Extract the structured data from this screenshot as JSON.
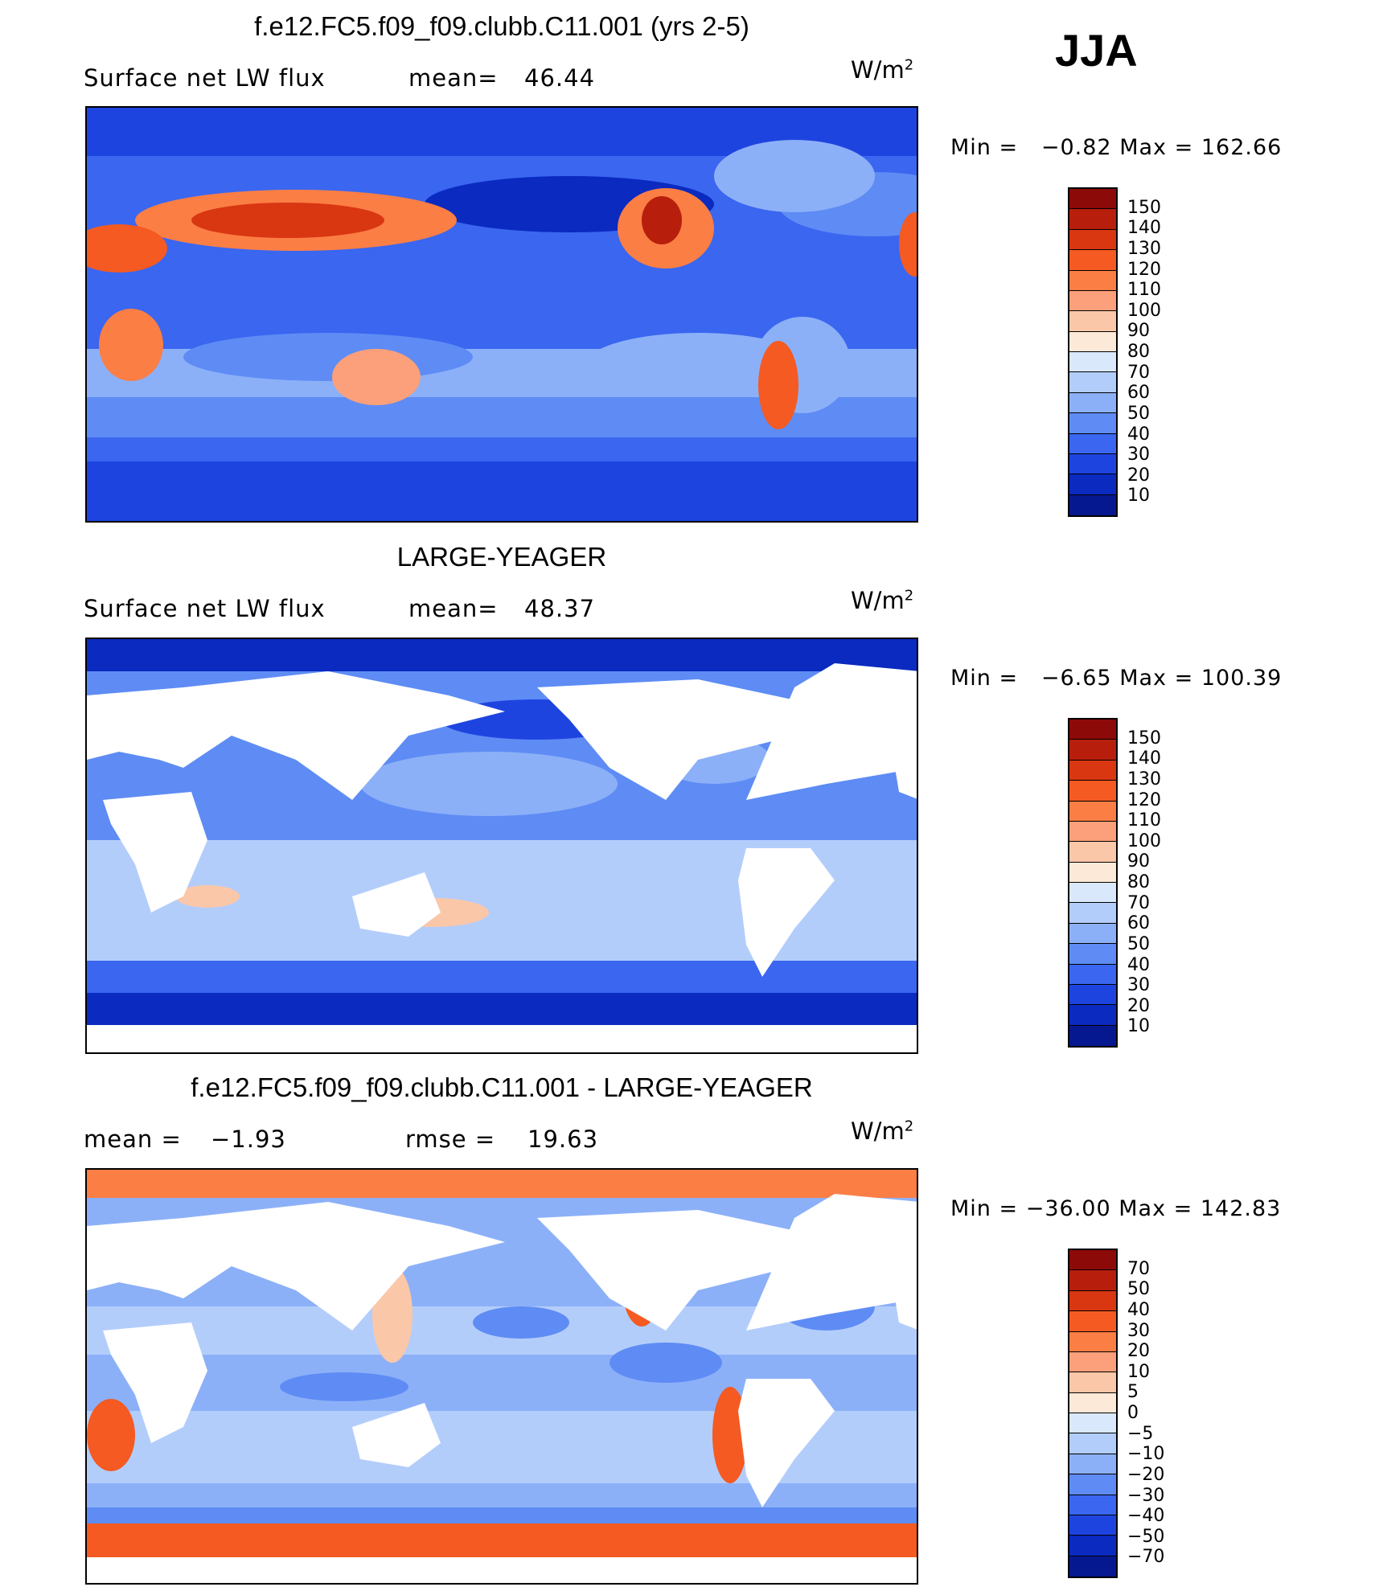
{
  "season": "JJA",
  "units": "W/m",
  "units_power": "2",
  "panels": [
    {
      "title": "f.e12.FC5.f09_f09.clubb.C11.001 (yrs 2-5)",
      "left_label": "Surface net LW flux",
      "stat_label": "mean=",
      "stat_value": "46.44",
      "stat2_label": "",
      "stat2_value": "",
      "min_label": "Min",
      "min_value": "−0.82",
      "max_label": "Max",
      "max_value": "162.66",
      "colorbar_labels": [
        "150",
        "140",
        "130",
        "120",
        "110",
        "100",
        "90",
        "80",
        "70",
        "60",
        "50",
        "40",
        "30",
        "20",
        "10"
      ],
      "colorbar_colors": [
        "#8c0a08",
        "#b81e0c",
        "#d93612",
        "#f45a22",
        "#fb7e45",
        "#fba07a",
        "#fbc7a9",
        "#fde9d8",
        "#d9e9fb",
        "#b3cdfb",
        "#8cb0f8",
        "#5e8cf4",
        "#3a66f0",
        "#1e44e0",
        "#0a2ac0",
        "#06188f"
      ],
      "map_style": "model"
    },
    {
      "title": "LARGE-YEAGER",
      "left_label": "Surface net LW flux",
      "stat_label": "mean=",
      "stat_value": "48.37",
      "stat2_label": "",
      "stat2_value": "",
      "min_label": "Min",
      "min_value": "−6.65",
      "max_label": "Max",
      "max_value": "100.39",
      "colorbar_labels": [
        "150",
        "140",
        "130",
        "120",
        "110",
        "100",
        "90",
        "80",
        "70",
        "60",
        "50",
        "40",
        "30",
        "20",
        "10"
      ],
      "colorbar_colors": [
        "#8c0a08",
        "#b81e0c",
        "#d93612",
        "#f45a22",
        "#fb7e45",
        "#fba07a",
        "#fbc7a9",
        "#fde9d8",
        "#d9e9fb",
        "#b3cdfb",
        "#8cb0f8",
        "#5e8cf4",
        "#3a66f0",
        "#1e44e0",
        "#0a2ac0",
        "#06188f"
      ],
      "map_style": "obs"
    },
    {
      "title": "f.e12.FC5.f09_f09.clubb.C11.001 - LARGE-YEAGER",
      "left_label": "mean =",
      "stat_label": "",
      "stat_value": "−1.93",
      "stat2_label": "rmse =",
      "stat2_value": "19.63",
      "min_label": "Min",
      "min_value": "−36.00",
      "max_label": "Max",
      "max_value": "142.83",
      "colorbar_labels": [
        "70",
        "50",
        "40",
        "30",
        "20",
        "10",
        "5",
        "0",
        "−5",
        "−10",
        "−20",
        "−30",
        "−40",
        "−50",
        "−70"
      ],
      "colorbar_colors": [
        "#8c0a08",
        "#b81e0c",
        "#d93612",
        "#f45a22",
        "#fb7e45",
        "#fba07a",
        "#fbc7a9",
        "#fde9d8",
        "#d9e9fb",
        "#b3cdfb",
        "#8cb0f8",
        "#5e8cf4",
        "#3a66f0",
        "#1e44e0",
        "#0a2ac0",
        "#06188f"
      ],
      "map_style": "diff"
    }
  ]
}
